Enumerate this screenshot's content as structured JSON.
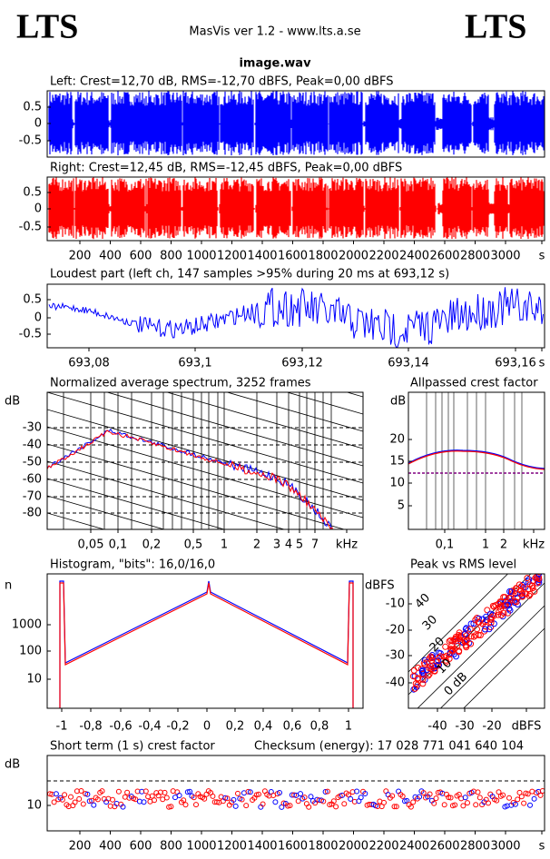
{
  "header": {
    "logo_left": "LTS",
    "logo_right": "LTS",
    "app": "MasVis ver 1.2 - www.lts.a.se",
    "file": "image.wav"
  },
  "panels": [
    {
      "title": "Left: Crest=12,70 dB, RMS=-12,70 dBFS, Peak=0,00 dBFS",
      "y_ticks": [
        "0.5",
        "0",
        "-0.5"
      ]
    },
    {
      "title": "Right: Crest=12,45 dB, RMS=-12,45 dBFS, Peak=0,00 dBFS",
      "y_ticks": [
        "0.5",
        "0",
        "-0.5"
      ],
      "x_ticks": [
        "200",
        "400",
        "600",
        "800",
        "1000",
        "1200",
        "1400",
        "1600",
        "1800",
        "2000",
        "2200",
        "2400",
        "2600",
        "2800",
        "3000",
        "s"
      ]
    },
    {
      "title": "Loudest part (left  ch, 147 samples >95% during 20 ms at 693,12 s)",
      "y_ticks": [
        "0.5",
        "0",
        "-0.5"
      ],
      "x_ticks": [
        "693,08",
        "693,1",
        "693,12",
        "693,14",
        "693,16",
        "s"
      ]
    },
    {
      "title": "Normalized average spectrum, 3252 frames",
      "y_unit": "dB",
      "y_ticks": [
        "-30",
        "-40",
        "-50",
        "-60",
        "-70",
        "-80"
      ],
      "x_ticks": [
        "0,05",
        "0,1",
        "0,2",
        "0,5",
        "1",
        "2",
        "3",
        "4",
        "5",
        "7",
        "kHz"
      ]
    },
    {
      "title": "Allpassed crest factor",
      "y_unit": "dB",
      "y_ticks": [
        "20",
        "15",
        "10",
        "5"
      ],
      "x_ticks": [
        "0,1",
        "1",
        "2",
        "kHz"
      ]
    },
    {
      "title": "Histogram, \"bits\": 16,0/16,0",
      "y_unit": "n",
      "y_ticks": [
        "1000",
        "100",
        "10"
      ],
      "x_ticks": [
        "-1",
        "-0,8",
        "-0,6",
        "-0,4",
        "-0,2",
        "0",
        "0,2",
        "0,4",
        "0,6",
        "0,8",
        "1"
      ]
    },
    {
      "title": "Peak vs RMS level",
      "y_unit": "dBFS",
      "y_ticks": [
        "-10",
        "-20",
        "-30",
        "-40"
      ],
      "x_ticks": [
        "-40",
        "-30",
        "-20",
        "dBFS"
      ],
      "diagonal_labels": [
        "40",
        "30",
        "20",
        "10",
        "0 dB"
      ]
    },
    {
      "title": "Short term (1 s) crest factor",
      "y_unit": "dB",
      "y_ticks": [
        "10"
      ],
      "x_ticks": [
        "200",
        "400",
        "600",
        "800",
        "1000",
        "1200",
        "1400",
        "1600",
        "1800",
        "2000",
        "2200",
        "2400",
        "2600",
        "2800",
        "3000",
        "s"
      ]
    }
  ],
  "checksum": "Checksum (energy):  17 028 771 041 640 104"
}
